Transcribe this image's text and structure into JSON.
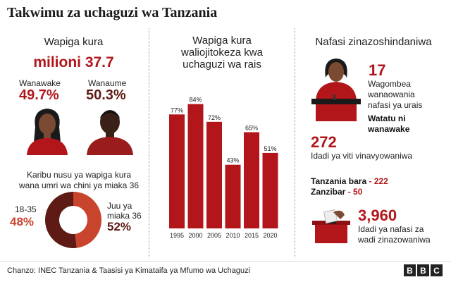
{
  "title": "Takwimu za uchaguzi wa Tanzania",
  "voters": {
    "heading": "Wapiga kura",
    "total": "milioni 37.7",
    "female_label": "Wanawake",
    "female_pct": "49.7%",
    "male_label": "Wanaume",
    "male_pct": "50.3%",
    "age_note": "Karibu nusu ya wapiga kura wana umri wa chini ya miaka 36",
    "young_label": "18-35",
    "young_pct": "48%",
    "old_label": "Juu ya miaka 36",
    "old_pct": "52%"
  },
  "turnout": {
    "heading": "Wapiga kura waliojitokeza kwa uchaguzi wa rais"
  },
  "positions": {
    "heading": "Nafasi zinazoshindaniwa",
    "candidates_num": "17",
    "candidates_desc": "Wagombea wanaowania nafasi ya urais",
    "candidates_note": "Watatu ni wanawake",
    "seats_num": "272",
    "seats_desc": "Idadi ya viti vinavyowaniwa",
    "mainland_label": "Tanzania  bara",
    "mainland_val": "- 222",
    "zanzibar_label": "Zanzibar",
    "zanzibar_val": "- 50",
    "wards_num": "3,960",
    "wards_desc": "Idadi ya nafasi za wadi zinazowaniwa"
  },
  "footer": {
    "source": "Chanzo: INEC Tanzania & Taasisi ya Kimataifa ya Mfumo wa Uchaguzi",
    "logo": [
      "B",
      "B",
      "C"
    ]
  },
  "colors": {
    "red": "#b2161a",
    "dark_red": "#5e1a14",
    "light_red": "#c9442c"
  },
  "chart_data": [
    {
      "type": "bar",
      "categories": [
        "1995",
        "2000",
        "2005",
        "2010",
        "2015",
        "2020"
      ],
      "values": [
        77,
        84,
        72,
        43,
        65,
        51
      ],
      "value_labels": [
        "77%",
        "84%",
        "72%",
        "43%",
        "65%",
        "51%"
      ],
      "ylim": [
        0,
        100
      ],
      "color": "#b2161a"
    },
    {
      "type": "pie",
      "categories": [
        "18-35",
        "Juu ya miaka 36"
      ],
      "values": [
        48,
        52
      ],
      "colors": [
        "#c9442c",
        "#5e1a14"
      ]
    }
  ]
}
